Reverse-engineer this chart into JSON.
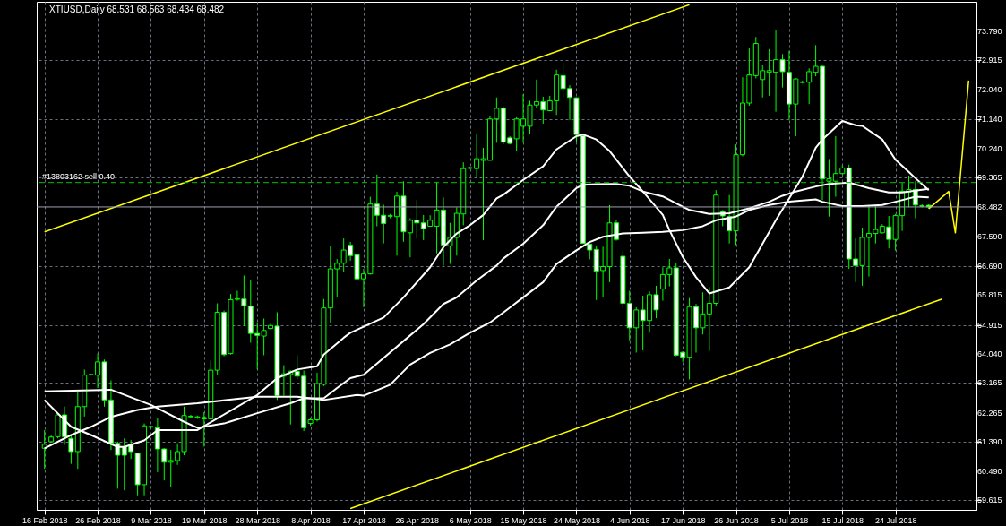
{
  "chart_data": {
    "type": "candlestick",
    "title": "XTIUSD,Daily 68.531 68.563 68.434 68.482",
    "categories": [
      "16 Feb 2018",
      null,
      null,
      null,
      null,
      null,
      null,
      null,
      "26 Feb 2018",
      null,
      null,
      null,
      null,
      null,
      null,
      null,
      "9 Mar 2018",
      null,
      null,
      null,
      null,
      null,
      null,
      null,
      "19 Mar 2018",
      null,
      null,
      null,
      null,
      null,
      null,
      null,
      "28 Mar 2018",
      null,
      null,
      null,
      null,
      null,
      null,
      null,
      "8 Apr 2018",
      null,
      null,
      null,
      null,
      null,
      null,
      null,
      "17 Apr 2018",
      null,
      null,
      null,
      null,
      null,
      null,
      null,
      "26 Apr 2018",
      null,
      null,
      null,
      null,
      null,
      null,
      null,
      "6 May 2018",
      null,
      null,
      null,
      null,
      null,
      null,
      null,
      "15 May 2018",
      null,
      null,
      null,
      null,
      null,
      null,
      null,
      "24 May 2018",
      null,
      null,
      null,
      null,
      null,
      null,
      null,
      "4 Jun 2018",
      null,
      null,
      null,
      null,
      null,
      null,
      null,
      "17 Jun 2018",
      null,
      null,
      null,
      null,
      null,
      null,
      null,
      "26 Jun 2018",
      null,
      null,
      null,
      null,
      null,
      null,
      null,
      "5 Jul 2018",
      null,
      null,
      null,
      null,
      null,
      null,
      null,
      "15 Jul 2018",
      null,
      null,
      null,
      null,
      null,
      null,
      null,
      "24 Jul 2018",
      null,
      null,
      null,
      null,
      null,
      null,
      null,
      null,
      null,
      null,
      null
    ],
    "ohlc": [
      [
        61.19,
        61.74,
        60.57,
        61.31
      ],
      [
        61.39,
        61.59,
        61.37,
        61.53
      ],
      [
        61.54,
        62.22,
        61.49,
        62.2
      ],
      [
        62.2,
        62.45,
        61.29,
        61.54
      ],
      [
        61.49,
        61.59,
        60.72,
        61.09
      ],
      [
        61.09,
        62.9,
        60.57,
        62.45
      ],
      [
        62.45,
        63.57,
        62.15,
        63.4
      ],
      [
        63.41,
        63.44,
        63.39,
        63.42
      ],
      [
        63.4,
        64.05,
        63.01,
        63.8
      ],
      [
        63.8,
        63.87,
        62.45,
        62.65
      ],
      [
        62.65,
        63.24,
        61.14,
        61.34
      ],
      [
        61.34,
        61.39,
        59.97,
        60.98
      ],
      [
        61.24,
        61.49,
        59.92,
        60.98
      ],
      [
        61.29,
        61.44,
        60.87,
        61.09
      ],
      [
        61.04,
        61.04,
        59.77,
        60.09
      ],
      [
        60.09,
        61.94,
        59.77,
        61.87
      ],
      [
        61.83,
        61.87,
        61.8,
        61.85
      ],
      [
        61.81,
        62.1,
        60.47,
        61.17
      ],
      [
        61.17,
        61.19,
        60.22,
        60.77
      ],
      [
        60.77,
        61.14,
        60.02,
        60.82
      ],
      [
        60.82,
        61.34,
        60.69,
        61.09
      ],
      [
        61.09,
        62.45,
        60.98,
        62.18
      ],
      [
        62.14,
        62.2,
        62.12,
        62.16
      ],
      [
        62.12,
        62.18,
        62.08,
        62.14
      ],
      [
        62.12,
        62.28,
        61.24,
        62.08
      ],
      [
        62.08,
        63.84,
        62.05,
        63.55
      ],
      [
        63.55,
        65.57,
        63.42,
        65.3
      ],
      [
        65.3,
        65.35,
        63.97,
        64.02
      ],
      [
        64.05,
        65.85,
        64.02,
        65.68
      ],
      [
        65.69,
        65.95,
        65.65,
        65.71
      ],
      [
        65.7,
        66.41,
        64.88,
        65.5
      ],
      [
        65.48,
        66.28,
        64.38,
        64.66
      ],
      [
        64.66,
        64.99,
        63.57,
        64.6
      ],
      [
        64.58,
        65.11,
        64.0,
        64.75
      ],
      [
        64.81,
        64.95,
        64.78,
        64.9
      ],
      [
        64.88,
        65.3,
        62.65,
        62.78
      ],
      [
        63.37,
        63.7,
        62.78,
        63.44
      ],
      [
        63.42,
        63.54,
        61.91,
        63.52
      ],
      [
        63.52,
        64.0,
        63.27,
        63.37
      ],
      [
        63.37,
        63.54,
        61.71,
        61.81
      ],
      [
        61.94,
        62.1,
        61.87,
        62.05
      ],
      [
        62.05,
        63.47,
        62.0,
        63.14
      ],
      [
        63.12,
        65.7,
        63.07,
        65.43
      ],
      [
        65.43,
        67.31,
        64.99,
        66.61
      ],
      [
        66.61,
        66.91,
        65.75,
        66.78
      ],
      [
        66.78,
        67.53,
        66.51,
        67.18
      ],
      [
        67.33,
        67.43,
        66.86,
        67.01
      ],
      [
        67.04,
        67.08,
        65.97,
        66.31
      ],
      [
        66.31,
        66.61,
        65.45,
        66.46
      ],
      [
        66.46,
        68.79,
        66.44,
        68.57
      ],
      [
        68.57,
        69.46,
        67.9,
        68.23
      ],
      [
        68.23,
        68.55,
        67.38,
        67.98
      ],
      [
        68.2,
        68.27,
        68.14,
        68.22
      ],
      [
        68.19,
        68.94,
        67.01,
        68.81
      ],
      [
        68.81,
        69.26,
        67.43,
        67.73
      ],
      [
        67.7,
        68.14,
        66.96,
        68.08
      ],
      [
        68.08,
        68.69,
        67.53,
        68.0
      ],
      [
        68.0,
        68.24,
        67.48,
        67.83
      ],
      [
        67.9,
        68.23,
        67.9,
        68.08
      ],
      [
        67.9,
        69.23,
        67.08,
        68.39
      ],
      [
        68.39,
        68.77,
        66.71,
        67.33
      ],
      [
        67.3,
        68.0,
        66.76,
        67.56
      ],
      [
        67.56,
        68.47,
        67.01,
        68.29
      ],
      [
        68.27,
        69.83,
        67.93,
        69.64
      ],
      [
        69.65,
        69.69,
        69.63,
        69.67
      ],
      [
        69.64,
        70.69,
        69.39,
        69.94
      ],
      [
        69.89,
        70.27,
        67.48,
        69.94
      ],
      [
        69.89,
        71.24,
        69.89,
        71.14
      ],
      [
        71.14,
        71.79,
        70.42,
        71.46
      ],
      [
        71.46,
        71.52,
        70.37,
        70.44
      ],
      [
        70.57,
        70.62,
        70.37,
        70.4
      ],
      [
        70.54,
        71.19,
        70.17,
        71.14
      ],
      [
        70.92,
        71.89,
        70.42,
        71.14
      ],
      [
        70.92,
        71.69,
        70.7,
        71.56
      ],
      [
        71.56,
        72.33,
        71.46,
        71.66
      ],
      [
        71.66,
        71.81,
        71.0,
        71.41
      ],
      [
        71.39,
        71.84,
        71.39,
        71.69
      ],
      [
        71.69,
        72.63,
        71.26,
        72.47
      ],
      [
        72.45,
        72.83,
        71.79,
        72.06
      ],
      [
        72.06,
        72.16,
        71.11,
        71.79
      ],
      [
        71.78,
        71.79,
        70.44,
        70.67
      ],
      [
        70.64,
        70.67,
        67.38,
        67.38
      ],
      [
        67.36,
        67.38,
        66.9,
        67.18
      ],
      [
        67.2,
        67.3,
        65.67,
        66.54
      ],
      [
        66.56,
        67.28,
        65.75,
        66.68
      ],
      [
        66.68,
        68.54,
        66.21,
        68.0
      ],
      [
        68.0,
        68.08,
        67.46,
        67.5
      ],
      [
        66.99,
        67.16,
        65.43,
        65.57
      ],
      [
        65.57,
        65.95,
        64.45,
        64.83
      ],
      [
        64.83,
        65.45,
        64.08,
        65.37
      ],
      [
        65.37,
        65.8,
        64.15,
        65.05
      ],
      [
        65.05,
        65.93,
        64.68,
        65.83
      ],
      [
        65.83,
        66.1,
        65.12,
        65.37
      ],
      [
        66.0,
        66.66,
        65.65,
        66.44
      ],
      [
        66.44,
        66.91,
        66.08,
        66.64
      ],
      [
        66.64,
        66.78,
        63.97,
        64.0
      ],
      [
        64.09,
        64.12,
        63.8,
        63.94
      ],
      [
        63.94,
        65.73,
        63.27,
        65.47
      ],
      [
        65.47,
        65.55,
        64.08,
        64.83
      ],
      [
        64.83,
        65.9,
        64.63,
        65.25
      ],
      [
        65.25,
        66.06,
        64.13,
        65.57
      ],
      [
        65.57,
        68.99,
        65.5,
        68.84
      ],
      [
        68.34,
        68.39,
        67.9,
        68.21
      ],
      [
        68.19,
        68.84,
        67.38,
        67.76
      ],
      [
        67.76,
        70.37,
        67.33,
        70.06
      ],
      [
        70.06,
        72.4,
        70.01,
        71.62
      ],
      [
        71.62,
        73.27,
        71.54,
        72.47
      ],
      [
        72.45,
        73.62,
        72.37,
        73.42
      ],
      [
        72.33,
        72.77,
        71.79,
        72.6
      ],
      [
        72.55,
        73.25,
        71.84,
        72.6
      ],
      [
        72.55,
        73.82,
        71.36,
        72.93
      ],
      [
        72.93,
        73.1,
        72.09,
        72.57
      ],
      [
        72.55,
        73.2,
        71.1,
        71.59
      ],
      [
        71.59,
        72.37,
        70.62,
        72.35
      ],
      [
        72.24,
        72.29,
        72.21,
        72.26
      ],
      [
        72.25,
        72.67,
        71.59,
        72.57
      ],
      [
        72.55,
        73.37,
        72.43,
        72.73
      ],
      [
        72.73,
        72.75,
        68.69,
        69.33
      ],
      [
        69.26,
        69.93,
        68.19,
        69.33
      ],
      [
        69.26,
        70.62,
        68.79,
        69.49
      ],
      [
        69.49,
        69.73,
        69.46,
        69.66
      ],
      [
        69.66,
        69.76,
        66.61,
        66.91
      ],
      [
        66.91,
        67.53,
        66.21,
        66.71
      ],
      [
        66.71,
        67.86,
        66.1,
        67.56
      ],
      [
        67.56,
        68.54,
        66.38,
        67.68
      ],
      [
        67.68,
        68.54,
        67.38,
        67.8
      ],
      [
        67.7,
        67.96,
        67.68,
        67.9
      ],
      [
        67.88,
        68.21,
        67.23,
        67.5
      ],
      [
        67.5,
        68.27,
        67.16,
        68.22
      ],
      [
        68.22,
        69.21,
        67.76,
        68.96
      ],
      [
        68.94,
        69.43,
        68.47,
        69.01
      ],
      [
        69.01,
        69.26,
        68.14,
        68.54
      ],
      [
        68.52,
        68.56,
        68.47,
        68.5
      ],
      [
        68.531,
        68.563,
        68.434,
        68.482
      ],
      null,
      null,
      null,
      null,
      null,
      null
    ],
    "series": [
      {
        "type": "line",
        "color": "#ffffff",
        "values": [
          62.65,
          null,
          null,
          null,
          61.84,
          null,
          null,
          61.59,
          null,
          null,
          null,
          61.23,
          61.23,
          null,
          null,
          61.43,
          null,
          61.74,
          null,
          null,
          null,
          61.74,
          null,
          61.74,
          null,
          null,
          null,
          null,
          null,
          null,
          null,
          null,
          62.8,
          null,
          null,
          63.31,
          null,
          null,
          63.57,
          null,
          null,
          63.67,
          64.02,
          null,
          null,
          64.53,
          64.68,
          null,
          null,
          null,
          null,
          65.14,
          null,
          null,
          65.75,
          null,
          null,
          null,
          66.66,
          null,
          67.27,
          null,
          67.68,
          null,
          67.93,
          null,
          68.24,
          null,
          68.74,
          68.85,
          null,
          null,
          69.3,
          null,
          null,
          69.71,
          null,
          70.22,
          null,
          null,
          70.62,
          70.67,
          null,
          70.52,
          null,
          70.17,
          null,
          null,
          69.4,
          null,
          68.95,
          null,
          null,
          68.24,
          67.78,
          null,
          66.97,
          null,
          66.36,
          null,
          65.87,
          null,
          null,
          66.05,
          null,
          null,
          66.66,
          null,
          67.37,
          null,
          68.08,
          null,
          68.74,
          null,
          69.4,
          null,
          70.27,
          70.52,
          null,
          null,
          71.08,
          null,
          70.95,
          70.93,
          null,
          null,
          70.52,
          null,
          69.91,
          null,
          null,
          69.35,
          null,
          68.99,
          null,
          null,
          null,
          null,
          null,
          null
        ]
      },
      {
        "type": "line",
        "color": "#ffffff",
        "values": [
          62.91,
          null,
          null,
          null,
          null,
          null,
          null,
          null,
          null,
          null,
          62.96,
          null,
          null,
          null,
          null,
          null,
          62.5,
          62.4,
          null,
          null,
          null,
          61.99,
          null,
          61.81,
          null,
          null,
          null,
          61.94,
          null,
          null,
          null,
          null,
          62.25,
          null,
          null,
          null,
          null,
          62.55,
          null,
          62.7,
          null,
          null,
          62.7,
          null,
          63.01,
          null,
          63.31,
          null,
          63.41,
          null,
          null,
          63.92,
          null,
          null,
          64.43,
          null,
          null,
          64.94,
          null,
          null,
          65.55,
          null,
          65.75,
          null,
          null,
          66.26,
          null,
          null,
          66.71,
          66.92,
          null,
          null,
          67.37,
          null,
          null,
          67.93,
          null,
          68.49,
          null,
          null,
          69.05,
          69.15,
          null,
          69.17,
          null,
          null,
          69.18,
          null,
          69.12,
          null,
          68.95,
          null,
          null,
          68.8,
          null,
          68.59,
          null,
          68.39,
          null,
          null,
          68.27,
          null,
          null,
          68.29,
          null,
          null,
          68.44,
          null,
          null,
          68.64,
          null,
          68.82,
          null,
          68.95,
          null,
          null,
          69.1,
          null,
          69.18,
          null,
          null,
          69.22,
          null,
          null,
          69.05,
          null,
          null,
          68.92,
          null,
          68.92,
          null,
          null,
          null,
          69.03,
          null,
          null,
          null,
          null,
          null,
          null
        ]
      },
      {
        "type": "line",
        "color": "#ffffff",
        "values": [
          61.19,
          null,
          null,
          null,
          61.59,
          null,
          null,
          61.84,
          null,
          null,
          62.14,
          null,
          null,
          null,
          62.35,
          null,
          null,
          62.45,
          null,
          null,
          null,
          null,
          null,
          62.55,
          null,
          null,
          null,
          null,
          null,
          null,
          null,
          null,
          62.75,
          null,
          null,
          null,
          null,
          null,
          62.75,
          null,
          null,
          null,
          62.65,
          null,
          null,
          null,
          null,
          62.8,
          62.78,
          null,
          null,
          null,
          63.11,
          null,
          null,
          63.72,
          null,
          null,
          64.07,
          null,
          null,
          64.33,
          null,
          null,
          64.68,
          null,
          null,
          64.99,
          null,
          null,
          65.44,
          null,
          65.75,
          null,
          null,
          66.21,
          null,
          66.76,
          null,
          null,
          67.17,
          null,
          67.42,
          null,
          67.58,
          null,
          null,
          67.68,
          null,
          null,
          67.7,
          null,
          null,
          67.73,
          null,
          null,
          67.78,
          null,
          null,
          67.9,
          null,
          68.08,
          null,
          null,
          68.19,
          null,
          68.39,
          null,
          null,
          68.54,
          null,
          null,
          68.64,
          null,
          null,
          null,
          68.71,
          68.64,
          null,
          null,
          68.51,
          null,
          null,
          68.51,
          null,
          null,
          68.54,
          null,
          68.64,
          null,
          null,
          68.79,
          null,
          68.77,
          null,
          null,
          null,
          null,
          null,
          null
        ]
      },
      {
        "type": "line",
        "color": "#ffff00",
        "values": [
          67.73,
          null,
          null,
          null,
          null,
          null,
          null,
          null,
          null,
          null,
          null,
          null,
          null,
          null,
          null,
          null,
          null,
          null,
          null,
          null,
          null,
          null,
          null,
          null,
          null,
          null,
          null,
          null,
          null,
          null,
          null,
          null,
          null,
          null,
          null,
          null,
          null,
          null,
          null,
          null,
          null,
          null,
          null,
          null,
          null,
          null,
          null,
          null,
          null,
          null,
          null,
          null,
          null,
          null,
          null,
          null,
          null,
          null,
          null,
          null,
          null,
          null,
          null,
          null,
          null,
          null,
          null,
          null,
          null,
          null,
          null,
          null,
          null,
          null,
          null,
          null,
          null,
          null,
          null,
          null,
          null,
          null,
          null,
          null,
          null,
          null,
          null,
          null,
          null,
          null,
          null,
          null,
          null,
          null,
          null,
          null,
          null,
          74.59,
          null,
          null,
          null,
          null,
          null,
          null,
          null,
          null,
          null,
          null,
          null,
          null,
          null,
          null,
          null,
          null,
          null,
          null,
          null,
          null,
          null,
          null,
          null,
          null,
          null,
          null,
          null,
          null,
          null,
          null,
          null,
          null,
          null,
          null,
          null,
          null,
          null,
          null,
          null,
          null,
          null,
          null
        ]
      },
      {
        "type": "line",
        "color": "#ffff00",
        "values": [
          null,
          null,
          null,
          null,
          null,
          null,
          null,
          null,
          null,
          null,
          null,
          null,
          null,
          null,
          null,
          null,
          null,
          null,
          null,
          null,
          null,
          null,
          null,
          null,
          null,
          null,
          null,
          null,
          null,
          null,
          null,
          null,
          null,
          null,
          null,
          null,
          null,
          null,
          null,
          null,
          null,
          null,
          null,
          null,
          null,
          null,
          59.37,
          null,
          null,
          null,
          null,
          null,
          null,
          null,
          null,
          null,
          null,
          null,
          null,
          null,
          null,
          null,
          null,
          null,
          null,
          null,
          null,
          null,
          null,
          null,
          null,
          null,
          null,
          null,
          null,
          null,
          null,
          null,
          null,
          null,
          null,
          null,
          null,
          null,
          null,
          null,
          null,
          null,
          null,
          null,
          null,
          null,
          null,
          null,
          null,
          null,
          null,
          null,
          null,
          null,
          null,
          null,
          null,
          null,
          null,
          null,
          null,
          null,
          null,
          null,
          null,
          null,
          null,
          null,
          null,
          null,
          null,
          null,
          null,
          null,
          null,
          null,
          null,
          null,
          null,
          null,
          null,
          null,
          null,
          null,
          null,
          null,
          null,
          null,
          null,
          65.7,
          null,
          null,
          null,
          null
        ]
      },
      {
        "type": "line",
        "color": "#ffff00",
        "values": [
          null,
          null,
          null,
          null,
          null,
          null,
          null,
          null,
          null,
          null,
          null,
          null,
          null,
          null,
          null,
          null,
          null,
          null,
          null,
          null,
          null,
          null,
          null,
          null,
          null,
          null,
          null,
          null,
          null,
          null,
          null,
          null,
          null,
          null,
          null,
          null,
          null,
          null,
          null,
          null,
          null,
          null,
          null,
          null,
          null,
          null,
          null,
          null,
          null,
          null,
          null,
          null,
          null,
          null,
          null,
          null,
          null,
          null,
          null,
          null,
          null,
          null,
          null,
          null,
          null,
          null,
          null,
          null,
          null,
          null,
          null,
          null,
          null,
          null,
          null,
          null,
          null,
          null,
          null,
          null,
          null,
          null,
          null,
          null,
          null,
          null,
          null,
          null,
          null,
          null,
          null,
          null,
          null,
          null,
          null,
          null,
          null,
          null,
          null,
          null,
          null,
          null,
          null,
          null,
          null,
          null,
          null,
          null,
          null,
          null,
          null,
          null,
          null,
          null,
          null,
          null,
          null,
          null,
          null,
          null,
          null,
          null,
          null,
          null,
          null,
          null,
          null,
          null,
          null,
          null,
          null,
          null,
          null,
          68.43,
          null,
          null,
          68.95,
          67.7,
          null,
          72.3
        ]
      }
    ],
    "ref_lines": [
      {
        "axis": "y",
        "value": 68.482,
        "label": "68.482",
        "color": "#a0a0b0"
      },
      {
        "axis": "y",
        "value": 69.22,
        "label": "#13803162 sell 0.40",
        "color": "#00c000",
        "line_style": "dashed"
      }
    ],
    "ylim": [
      59.33,
      74.68
    ],
    "yticks": [
      {
        "value": 73.79,
        "label": "73.790"
      },
      {
        "value": 72.915,
        "label": "72.915"
      },
      {
        "value": 72.04,
        "label": "72.040"
      },
      {
        "value": 71.14,
        "label": "71.140"
      },
      {
        "value": 70.24,
        "label": "70.240"
      },
      {
        "value": 69.365,
        "label": "69.365"
      },
      {
        "value": 67.59,
        "label": "67.590"
      },
      {
        "value": 66.69,
        "label": "66.690"
      },
      {
        "value": 65.815,
        "label": "65.815"
      },
      {
        "value": 64.915,
        "label": "64.915"
      },
      {
        "value": 64.04,
        "label": "64.040"
      },
      {
        "value": 63.165,
        "label": "63.165"
      },
      {
        "value": 62.265,
        "label": "62.265"
      },
      {
        "value": 61.39,
        "label": "61.390"
      },
      {
        "value": 60.49,
        "label": "60.490"
      },
      {
        "value": 59.615,
        "label": "59.615"
      }
    ],
    "grid": true
  }
}
